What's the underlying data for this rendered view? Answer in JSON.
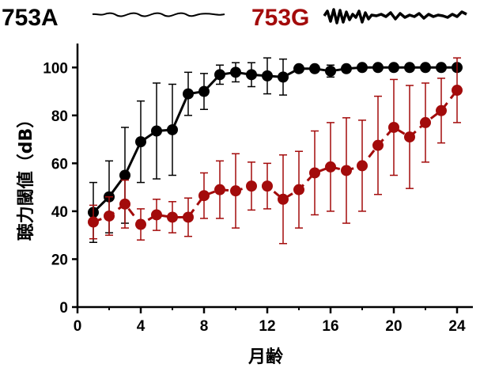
{
  "chart_data": {
    "type": "line",
    "title": "",
    "xlabel": "月齢",
    "ylabel": "聴力閾値（dB）",
    "xlim": [
      0,
      25
    ],
    "ylim": [
      0,
      110
    ],
    "xticks": [
      0,
      4,
      8,
      12,
      16,
      20,
      24
    ],
    "yticks": [
      0,
      20,
      40,
      60,
      80,
      100
    ],
    "grid": false,
    "legend": "top",
    "series": [
      {
        "name": "753A",
        "color": "#000000",
        "line_style": "solid",
        "x": [
          1,
          2,
          3,
          4,
          5,
          6,
          7,
          8,
          9,
          10,
          11,
          12,
          13,
          14,
          15,
          16,
          17,
          18,
          19,
          20,
          21,
          22,
          23,
          24
        ],
        "y": [
          39.5,
          46,
          55,
          69,
          73.5,
          74,
          89,
          90,
          97,
          98,
          97,
          96.5,
          96,
          99.5,
          99.5,
          98.5,
          99.5,
          100,
          100,
          100,
          100,
          100,
          100,
          100
        ],
        "err": [
          12.5,
          15,
          20,
          17,
          20,
          19,
          9,
          7.5,
          4,
          4,
          5,
          7.5,
          7.5,
          1,
          1,
          2.5,
          1,
          0,
          0,
          0,
          0,
          0,
          0,
          0
        ]
      },
      {
        "name": "753G",
        "color": "#a30b0b",
        "line_style": "dashed",
        "x": [
          1,
          2,
          3,
          4,
          5,
          6,
          7,
          8,
          9,
          10,
          11,
          12,
          13,
          14,
          15,
          16,
          17,
          18,
          19,
          20,
          21,
          22,
          23,
          24
        ],
        "y": [
          35.5,
          38,
          43,
          34.5,
          38.5,
          37.5,
          37.5,
          46.5,
          49,
          48.5,
          50.5,
          50.5,
          45,
          49,
          56,
          58.5,
          57,
          59,
          67.5,
          75,
          71,
          77,
          82,
          90.5
        ],
        "err": [
          7,
          8,
          10,
          6.5,
          6.5,
          6.5,
          8,
          9.5,
          12,
          15.5,
          10,
          9.5,
          18.5,
          16,
          17.5,
          18.5,
          22,
          19,
          20.5,
          20,
          21.5,
          16.5,
          13.5,
          13.5
        ]
      }
    ]
  }
}
